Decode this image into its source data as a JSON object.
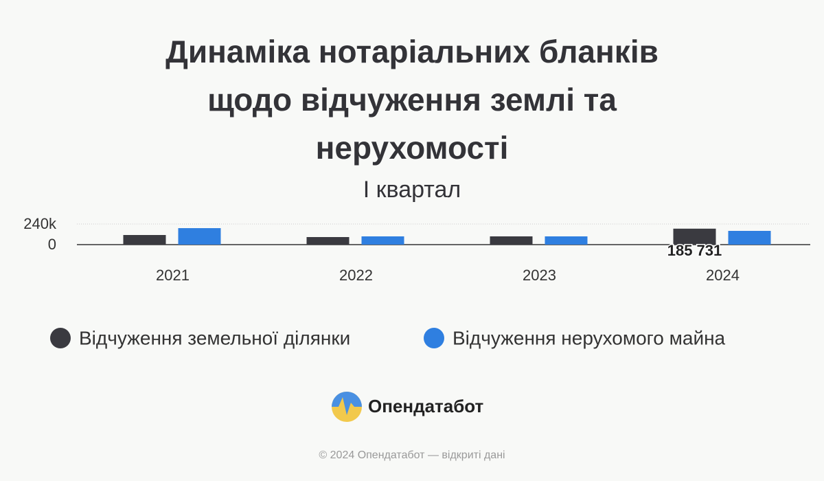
{
  "chart_data": {
    "type": "bar",
    "title": "Динаміка нотаріальних бланків щодо відчуження землі та нерухомості",
    "subtitle": "I квартал",
    "categories": [
      "2021",
      "2022",
      "2023",
      "2024"
    ],
    "series": [
      {
        "name": "Відчуження земельної ділянки",
        "color": "#3a3a40",
        "values": [
          112000,
          88000,
          96000,
          185731
        ],
        "value_labels": [
          null,
          null,
          null,
          "185 731"
        ]
      },
      {
        "name": "Відчуження нерухомого майна",
        "color": "#2f7fe0",
        "values": [
          192000,
          96000,
          96000,
          160000
        ]
      }
    ],
    "ylim": [
      0,
      240000
    ],
    "yticks": [
      0,
      {
        "value": 240000,
        "label": "240k"
      }
    ],
    "grid": true,
    "legend": "bottom"
  },
  "brand": "Опендатабот",
  "footer": "© 2024 Опендатабот — відкриті дані"
}
